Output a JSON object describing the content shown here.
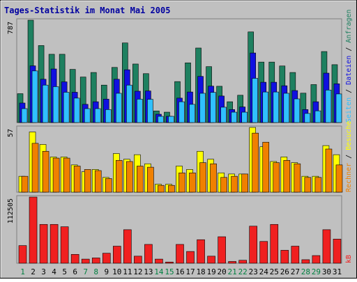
{
  "chart_data": {
    "type": "bar",
    "title": "Tages-Statistik im Monat Mai 2005",
    "categories": [
      "1",
      "2",
      "3",
      "4",
      "5",
      "6",
      "7",
      "8",
      "9",
      "10",
      "11",
      "12",
      "13",
      "14",
      "15",
      "16",
      "17",
      "18",
      "19",
      "20",
      "21",
      "22",
      "23",
      "24",
      "25",
      "26",
      "27",
      "28",
      "29",
      "30",
      "31"
    ],
    "weekend_days": [
      "1",
      "7",
      "8",
      "14",
      "15",
      "21",
      "22",
      "28",
      "29"
    ],
    "panels": [
      {
        "id": "requests",
        "ymax_label": "787",
        "ymax": 787,
        "right_labels": [
          "Anfragen",
          "/",
          "Dateien",
          "/",
          "Seiten"
        ],
        "series": [
          {
            "name": "Anfragen",
            "color": "#1e8060",
            "values": [
              222,
              787,
              592,
              525,
              525,
              409,
              350,
              385,
              288,
              424,
              612,
              450,
              376,
              89,
              80,
              315,
              459,
              573,
              430,
              279,
              160,
              210,
              697,
              465,
              465,
              435,
              385,
              226,
              292,
              546,
              445
            ]
          },
          {
            "name": "Dateien",
            "color": "#1010e0",
            "values": [
              150,
              436,
              333,
              412,
              313,
              233,
              140,
              160,
              180,
              333,
              406,
              241,
              243,
              64,
              48,
              188,
              235,
              355,
              280,
              204,
              100,
              120,
              535,
              310,
              310,
              283,
              246,
              100,
              160,
              380,
              298
            ]
          },
          {
            "name": "Seiten",
            "color": "#30c0ff",
            "values": [
              107,
              397,
              288,
              276,
              233,
              188,
              107,
              107,
              100,
              225,
              288,
              180,
              179,
              48,
              48,
              160,
              140,
              225,
              232,
              118,
              80,
              80,
              340,
              235,
              235,
              225,
              182,
              70,
              90,
              250,
              220
            ]
          }
        ]
      },
      {
        "id": "visits",
        "ymax_label": "57",
        "ymax": 57,
        "right_labels": [
          "Besuche",
          "/",
          "Rechner"
        ],
        "series": [
          {
            "name": "Besuche",
            "color": "#ffff00",
            "values": [
              14,
              53,
              42,
              31,
              31,
              24,
              18,
              20,
              13,
              34,
              29,
              33,
              25,
              7,
              7,
              23,
              20,
              36,
              29,
              17,
              16,
              16,
              57,
              40,
              27,
              31,
              26,
              14,
              14,
              41,
              33
            ]
          },
          {
            "name": "Rechner",
            "color": "#f08000",
            "values": [
              14,
              43,
              36,
              30,
              30,
              23,
              20,
              19,
              12,
              28,
              27,
              23,
              22,
              6,
              6,
              17,
              17,
              26,
              25,
              13,
              14,
              16,
              52,
              44,
              26,
              28,
              25,
              13,
              13,
              38,
              24
            ]
          }
        ]
      },
      {
        "id": "kbytes",
        "ymax_label": "112505",
        "ymax": 112505,
        "right_labels": [
          "kB"
        ],
        "series": [
          {
            "name": "kB",
            "color": "#f02020",
            "values": [
              30000,
              112505,
              66000,
              66000,
              62000,
              15000,
              7000,
              9000,
              17000,
              29000,
              57000,
              12000,
              32000,
              7000,
              2000,
              32000,
              20000,
              40000,
              12000,
              45000,
              3000,
              5000,
              63000,
              37000,
              66000,
              22000,
              29000,
              6000,
              13000,
              57000,
              41000
            ]
          }
        ]
      }
    ]
  }
}
